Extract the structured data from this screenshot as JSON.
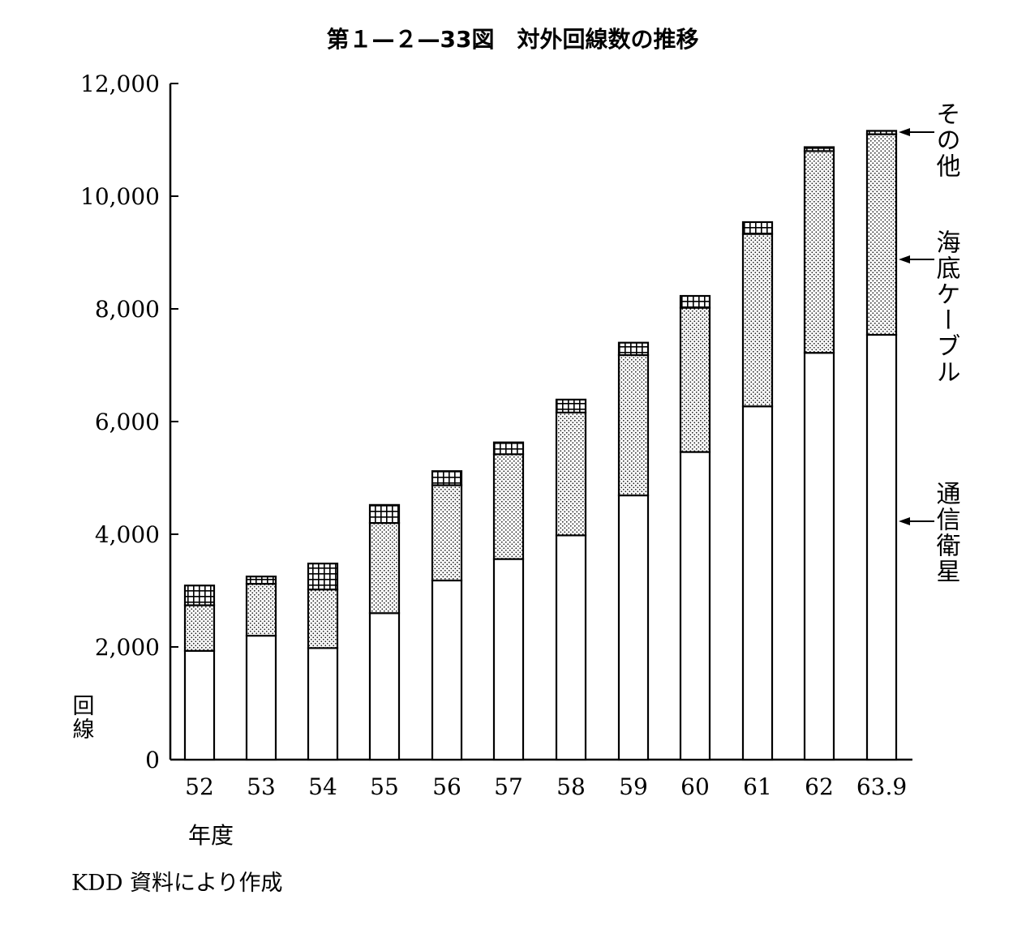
{
  "chart_data": {
    "type": "bar",
    "stacked": true,
    "title": "第１—２—33図　対外回線数の推移",
    "ylabel": "回線",
    "xlabel": "年度",
    "source": "KDD 資料により作成",
    "ylim": [
      0,
      12000
    ],
    "yticks": [
      "0",
      "2,000",
      "4,000",
      "6,000",
      "8,000",
      "10,000",
      "12,000"
    ],
    "ytick_values": [
      0,
      2000,
      4000,
      6000,
      8000,
      10000,
      12000
    ],
    "categories": [
      "52",
      "53",
      "54",
      "55",
      "56",
      "57",
      "58",
      "59",
      "60",
      "61",
      "62",
      "63.9"
    ],
    "series": [
      {
        "name": "通信衛星",
        "values": [
          1930,
          2200,
          1980,
          2600,
          3180,
          3560,
          3980,
          4690,
          5460,
          6270,
          7220,
          7540
        ]
      },
      {
        "name": "海底ケーブル",
        "values": [
          810,
          920,
          1040,
          1600,
          1690,
          1860,
          2180,
          2490,
          2560,
          3060,
          3580,
          3560
        ]
      },
      {
        "name": "その他",
        "values": [
          350,
          130,
          460,
          320,
          250,
          210,
          230,
          220,
          210,
          210,
          70,
          60
        ]
      }
    ],
    "legend_position": "right",
    "grid": false
  },
  "colors": {
    "ink": "#000000",
    "background": "#ffffff"
  }
}
